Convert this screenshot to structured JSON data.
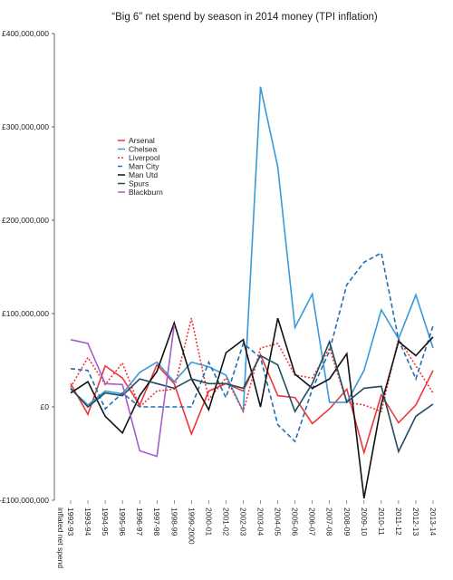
{
  "chart_data": {
    "type": "line",
    "title": "“Big 6” net spend by season in 2014 money (TPI inflation)",
    "x_label": "inflated net spend",
    "categories": [
      "1992-93",
      "1993-94",
      "1994-95",
      "1995-96",
      "1996-97",
      "1997-98",
      "1998-99",
      "1999-2000",
      "2000-01",
      "2001-02",
      "2002-03",
      "2003-04",
      "2004-05",
      "2005-06",
      "2006-07",
      "2007-08",
      "2008-09",
      "2009-10",
      "2010-11",
      "2011-12",
      "2012-13",
      "2013-14"
    ],
    "ylim": [
      -100000000,
      400000000
    ],
    "yticks": [
      {
        "value": -100000000,
        "label": "-£100,000,000"
      },
      {
        "value": 0,
        "label": "£0"
      },
      {
        "value": 100000000,
        "label": "£100,000,000"
      },
      {
        "value": 200000000,
        "label": "£200,000,000"
      },
      {
        "value": 300000000,
        "label": "£300,000,000"
      },
      {
        "value": 400000000,
        "label": "£400,000,000"
      }
    ],
    "series": [
      {
        "name": "Arsenal",
        "color": "#f0353a",
        "style": "solid",
        "values": [
          25000000,
          -8000000,
          44000000,
          31000000,
          2000000,
          45000000,
          25000000,
          -29000000,
          17000000,
          25000000,
          17000000,
          56000000,
          12000000,
          10000000,
          -18000000,
          -2000000,
          19000000,
          -49000000,
          13000000,
          -17000000,
          2000000,
          39000000
        ]
      },
      {
        "name": "Chelsea",
        "color": "#3a9ad9",
        "style": "solid",
        "values": [
          19000000,
          2000000,
          17000000,
          14000000,
          37000000,
          48000000,
          27000000,
          48000000,
          43000000,
          34000000,
          -5000000,
          343000000,
          257000000,
          85000000,
          121000000,
          5000000,
          5000000,
          39000000,
          104000000,
          73000000,
          120000000,
          63000000
        ]
      },
      {
        "name": "Liverpool",
        "color": "#f0353a",
        "style": "dotted",
        "values": [
          21000000,
          53000000,
          24000000,
          47000000,
          0,
          17000000,
          19000000,
          95000000,
          8000000,
          31000000,
          -5000000,
          63000000,
          68000000,
          34000000,
          31000000,
          63000000,
          5000000,
          2000000,
          -5000000,
          73000000,
          44000000,
          15000000
        ]
      },
      {
        "name": "Man City",
        "color": "#1f6fb5",
        "style": "dashed",
        "values": [
          41000000,
          39000000,
          -2000000,
          15000000,
          0,
          0,
          0,
          0,
          48000000,
          10000000,
          68000000,
          53000000,
          -19000000,
          -37000000,
          19000000,
          60000000,
          131000000,
          155000000,
          165000000,
          72000000,
          30000000,
          87000000
        ]
      },
      {
        "name": "Man Utd",
        "color": "#111111",
        "style": "solid",
        "values": [
          15000000,
          27000000,
          -10000000,
          -28000000,
          12000000,
          38000000,
          90000000,
          30000000,
          -3000000,
          58000000,
          72000000,
          0,
          95000000,
          35000000,
          20000000,
          30000000,
          57000000,
          -98000000,
          3000000,
          70000000,
          55000000,
          75000000
        ]
      },
      {
        "name": "Spurs",
        "color": "#1d4e5e",
        "style": "solid",
        "values": [
          20000000,
          0,
          15000000,
          12000000,
          30000000,
          25000000,
          20000000,
          30000000,
          25000000,
          25000000,
          20000000,
          55000000,
          45000000,
          -5000000,
          25000000,
          70000000,
          5000000,
          20000000,
          22000000,
          -48000000,
          -10000000,
          3000000
        ]
      },
      {
        "name": "Blackburn",
        "color": "#a75cc9",
        "style": "solid",
        "values": [
          72000000,
          68000000,
          25000000,
          24000000,
          -47000000,
          -53000000,
          88000000,
          null,
          null,
          null,
          null,
          null,
          null,
          null,
          null,
          null,
          null,
          null,
          null,
          null,
          null,
          null
        ]
      }
    ]
  }
}
